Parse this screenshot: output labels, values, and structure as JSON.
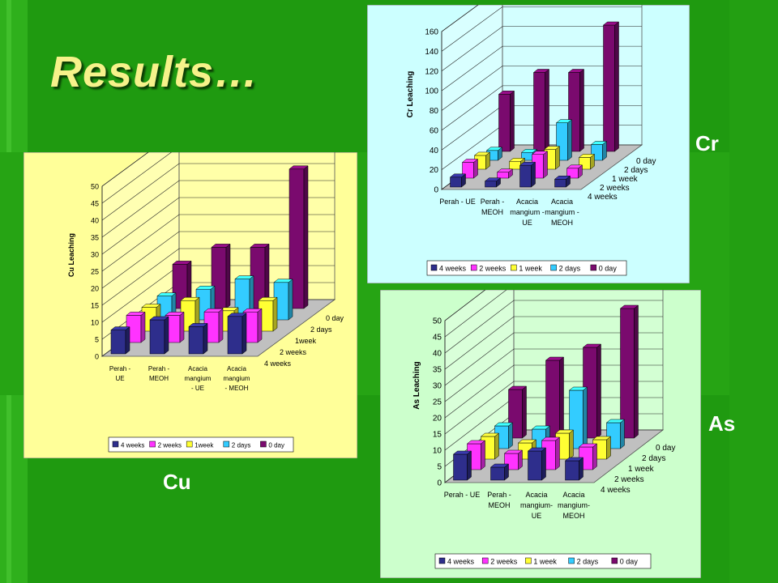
{
  "slide": {
    "title": "Results…",
    "labels": {
      "cr": "Cr",
      "cu": "Cu",
      "as": "As"
    }
  },
  "colors": {
    "background": "#1f9a10",
    "title": "#f6f28a",
    "series": [
      "#2e2e8c",
      "#ff33ff",
      "#ffff33",
      "#33ccff",
      "#7a0a6e"
    ]
  },
  "chart_data": [
    {
      "id": "cr",
      "type": "bar",
      "subtype": "3d-clustered",
      "panel_bg": "#ccffff",
      "ylabel": "Cr Leaching",
      "ylim": [
        0,
        160
      ],
      "yticks": [
        0,
        20,
        40,
        60,
        80,
        100,
        120,
        140,
        160
      ],
      "categories": [
        [
          "Perah - UE"
        ],
        [
          "Perah -",
          "MEOH"
        ],
        [
          "Acacia",
          "mangium -",
          "UE"
        ],
        [
          "Acacia",
          "mangium -",
          "MEOH"
        ]
      ],
      "depth_labels": [
        "4 weeks",
        "2 weeks",
        "1 week",
        "2 days",
        "0 day"
      ],
      "series": [
        {
          "name": "4 weeks",
          "values": [
            10,
            6,
            22,
            8
          ]
        },
        {
          "name": "2 weeks",
          "values": [
            16,
            6,
            24,
            10
          ]
        },
        {
          "name": "1 week",
          "values": [
            14,
            8,
            20,
            12
          ]
        },
        {
          "name": "2 days",
          "values": [
            10,
            8,
            38,
            16
          ]
        },
        {
          "name": "0 day",
          "values": [
            58,
            80,
            80,
            128
          ]
        }
      ],
      "legend": "bottom"
    },
    {
      "id": "cu",
      "type": "bar",
      "subtype": "3d-clustered",
      "panel_bg": "#ffff99",
      "ylabel": "Cu Leaching",
      "ylim": [
        0,
        50
      ],
      "yticks": [
        0,
        5,
        10,
        15,
        20,
        25,
        30,
        35,
        40,
        45,
        50
      ],
      "categories": [
        [
          "Perah -",
          "UE"
        ],
        [
          "Perah -",
          "MEOH"
        ],
        [
          "Acacia",
          "mangium",
          "- UE"
        ],
        [
          "Acacia",
          "mangium",
          "- MEOH"
        ]
      ],
      "depth_labels": [
        "4 weeks",
        "2 weeks",
        "1week",
        "2 days",
        "0 day"
      ],
      "series": [
        {
          "name": "4 weeks",
          "values": [
            7,
            10,
            8,
            11
          ]
        },
        {
          "name": "2 weeks",
          "values": [
            8,
            8,
            9,
            9
          ]
        },
        {
          "name": "1week",
          "values": [
            7,
            9,
            6,
            9
          ]
        },
        {
          "name": "2 days",
          "values": [
            7,
            9,
            12,
            11
          ]
        },
        {
          "name": "0 day",
          "values": [
            13,
            18,
            18,
            41
          ]
        }
      ],
      "legend": "bottom"
    },
    {
      "id": "as",
      "type": "bar",
      "subtype": "3d-clustered",
      "panel_bg": "#ccffcc",
      "ylabel": "As Leaching",
      "ylim": [
        0,
        50
      ],
      "yticks": [
        0,
        5,
        10,
        15,
        20,
        25,
        30,
        35,
        40,
        45,
        50
      ],
      "categories": [
        [
          "Perah - UE"
        ],
        [
          "Perah -",
          "MEOH"
        ],
        [
          "Acacia",
          "mangium-",
          "UE"
        ],
        [
          "Acacia",
          "mangium-",
          "MEOH"
        ]
      ],
      "depth_labels": [
        "4 weeks",
        "2 weeks",
        "1 week",
        "2 days",
        "0 day"
      ],
      "series": [
        {
          "name": "4 weeks",
          "values": [
            8,
            4,
            9,
            6
          ]
        },
        {
          "name": "2 weeks",
          "values": [
            8,
            5,
            9,
            7
          ]
        },
        {
          "name": "1 week",
          "values": [
            7,
            5,
            8,
            6
          ]
        },
        {
          "name": "2 days",
          "values": [
            7,
            6,
            18,
            8
          ]
        },
        {
          "name": "0 day",
          "values": [
            15,
            24,
            28,
            40
          ]
        }
      ],
      "legend": "bottom"
    }
  ]
}
